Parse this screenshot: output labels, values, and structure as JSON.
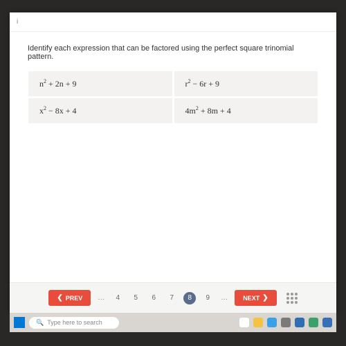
{
  "topbar": {
    "indicator": "i"
  },
  "question": "Identify each expression that can be factored using the perfect square trinomial pattern.",
  "expressions": {
    "cells": [
      {
        "base1": "n",
        "mid": " + 2n + 9"
      },
      {
        "base1": "r",
        "mid": " − 6r + 9"
      },
      {
        "base1": "x",
        "mid": " − 8x + 4"
      },
      {
        "pre": "4",
        "base1": "m",
        "mid": " + 8m + 4"
      }
    ]
  },
  "pager": {
    "prev": "PREV",
    "next": "NEXT",
    "pages": [
      "4",
      "5",
      "6",
      "7",
      "8",
      "9"
    ],
    "active": "8"
  },
  "taskbar": {
    "search_placeholder": "Type here to search"
  },
  "colors": {
    "accent": "#e74c3c",
    "active_page": "#5a6b8c",
    "cell_bg": "#f3f2f0",
    "taskbar_bg": "#d9d6d2"
  },
  "tray_icons": [
    "#ffffff",
    "#f6c244",
    "#3aa0e8",
    "#7a7a7a",
    "#2e6fb4",
    "#3ba06a",
    "#3570b8"
  ]
}
